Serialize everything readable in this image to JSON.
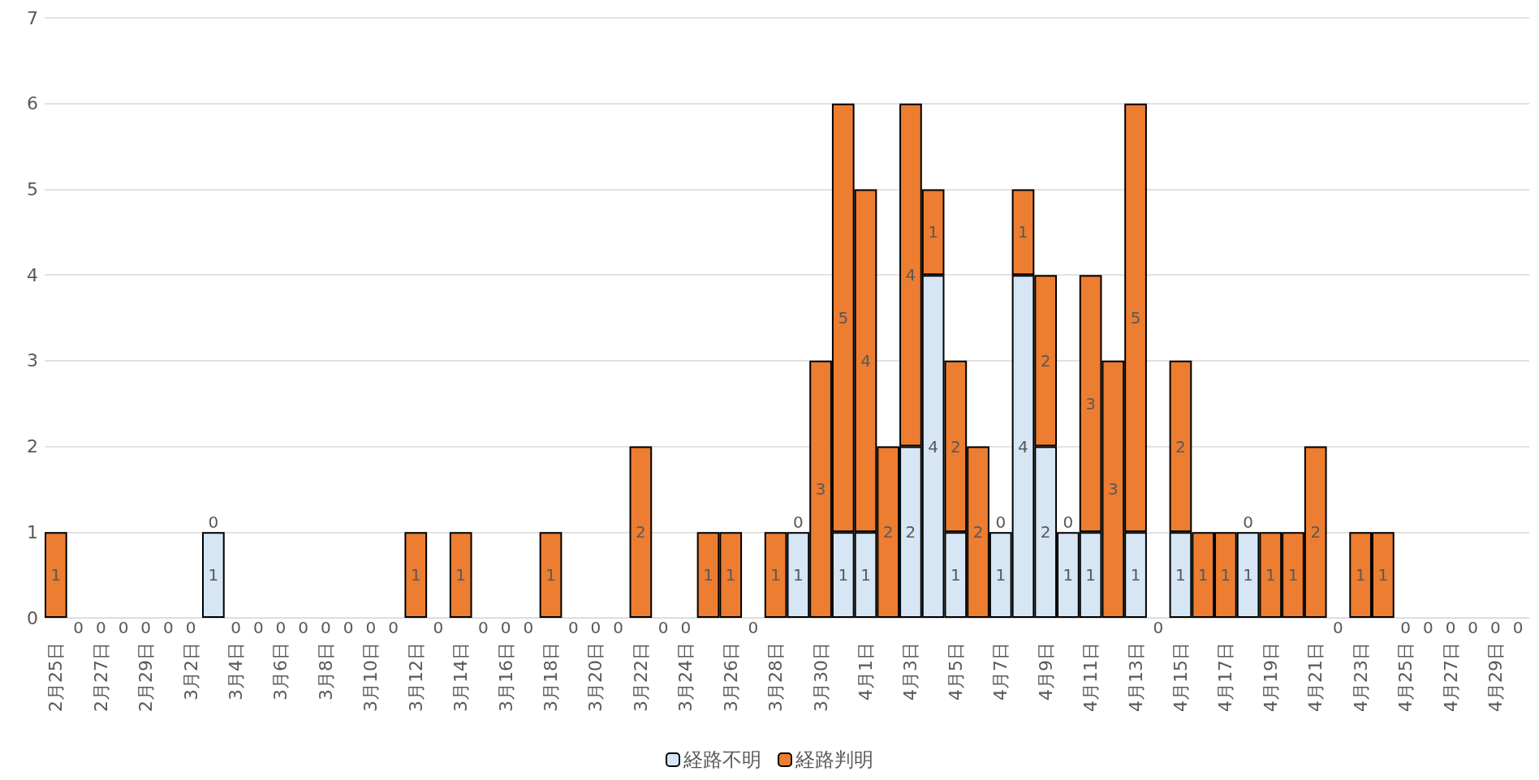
{
  "chart_data": {
    "type": "bar",
    "stacked": true,
    "grid": "y",
    "legend": "bottom",
    "ylim": [
      0,
      7
    ],
    "yticks": [
      0,
      1,
      2,
      3,
      4,
      5,
      6,
      7
    ],
    "categories": [
      "2月25日",
      null,
      "2月27日",
      null,
      "2月29日",
      null,
      "3月2日",
      null,
      "3月4日",
      null,
      "3月6日",
      null,
      "3月8日",
      null,
      "3月10日",
      null,
      "3月12日",
      null,
      "3月14日",
      null,
      "3月16日",
      null,
      "3月18日",
      null,
      "3月20日",
      null,
      "3月22日",
      null,
      "3月24日",
      null,
      "3月26日",
      null,
      "3月28日",
      null,
      "3月30日",
      null,
      "4月1日",
      null,
      "4月3日",
      null,
      "4月5日",
      null,
      "4月7日",
      null,
      "4月9日",
      null,
      "4月11日",
      null,
      "4月13日",
      null,
      "4月15日",
      null,
      "4月17日",
      null,
      "4月19日",
      null,
      "4月21日",
      null,
      "4月23日",
      null,
      "4月25日",
      null,
      "4月27日",
      null,
      "4月29日",
      null
    ],
    "series": [
      {
        "name": "経路不明",
        "color": "#d6e6f5",
        "values": [
          0,
          0,
          0,
          0,
          0,
          0,
          0,
          1,
          0,
          0,
          0,
          0,
          0,
          0,
          0,
          0,
          0,
          0,
          0,
          0,
          0,
          0,
          0,
          0,
          0,
          0,
          0,
          0,
          0,
          0,
          0,
          0,
          0,
          1,
          0,
          1,
          1,
          0,
          2,
          4,
          1,
          0,
          1,
          4,
          2,
          1,
          1,
          0,
          1,
          0,
          1,
          0,
          0,
          1,
          0,
          0,
          0,
          0,
          0,
          0,
          0,
          0,
          0,
          0,
          0,
          0
        ],
        "value_labels": [
          null,
          "0",
          "0",
          "0",
          "0",
          "0",
          "0",
          "1",
          "0",
          "0",
          "0",
          "0",
          "0",
          "0",
          "0",
          "0",
          null,
          "0",
          null,
          "0",
          "0",
          "0",
          null,
          "0",
          "0",
          "0",
          null,
          "0",
          "0",
          null,
          null,
          "0",
          null,
          "1",
          null,
          "1",
          "1",
          null,
          "2",
          "4",
          "1",
          null,
          "1",
          "4",
          "2",
          "1",
          "1",
          null,
          "1",
          "0",
          "1",
          null,
          null,
          "1",
          null,
          null,
          null,
          "0",
          null,
          null,
          "0",
          "0",
          "0",
          "0",
          "0",
          "0"
        ]
      },
      {
        "name": "経路判明",
        "color": "#ed7d31",
        "values": [
          1,
          0,
          0,
          0,
          0,
          0,
          0,
          0,
          0,
          0,
          0,
          0,
          0,
          0,
          0,
          0,
          1,
          0,
          1,
          0,
          0,
          0,
          1,
          0,
          0,
          0,
          2,
          0,
          0,
          1,
          1,
          0,
          1,
          0,
          3,
          5,
          4,
          2,
          4,
          1,
          2,
          2,
          0,
          1,
          2,
          0,
          3,
          3,
          5,
          0,
          2,
          1,
          1,
          0,
          1,
          1,
          2,
          0,
          1,
          1,
          0,
          0,
          0,
          0,
          0,
          0
        ],
        "value_labels": [
          "1",
          null,
          null,
          null,
          null,
          null,
          null,
          "0",
          null,
          null,
          null,
          null,
          null,
          null,
          null,
          null,
          "1",
          null,
          "1",
          null,
          null,
          null,
          "1",
          null,
          null,
          null,
          "2",
          null,
          null,
          "1",
          "1",
          null,
          "1",
          "0",
          "3",
          "5",
          "4",
          "2",
          "4",
          "1",
          "2",
          "2",
          "0",
          "1",
          "2",
          "0",
          "3",
          "3",
          "5",
          null,
          "2",
          "1",
          "1",
          "0",
          "1",
          "1",
          "2",
          null,
          "1",
          "1",
          null,
          null,
          null,
          null,
          null,
          null
        ]
      }
    ]
  }
}
